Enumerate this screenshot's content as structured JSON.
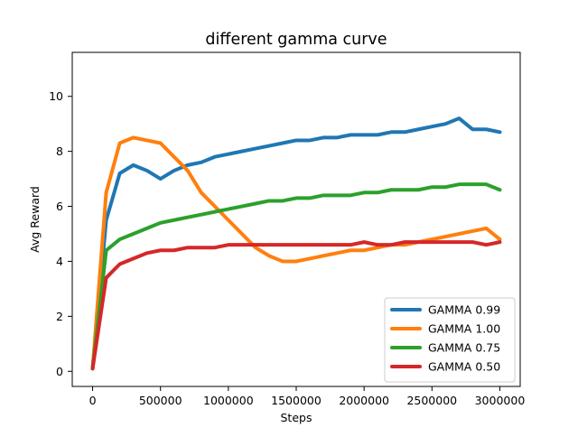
{
  "chart_data": {
    "type": "line",
    "title": "different gamma curve",
    "xlabel": "Steps",
    "ylabel": "Avg Reward",
    "xlim": [
      -150000,
      3150000
    ],
    "ylim": [
      -0.55,
      11.6
    ],
    "xticks": [
      0,
      500000,
      1000000,
      1500000,
      2000000,
      2500000,
      3000000
    ],
    "xtick_labels": [
      "0",
      "500000",
      "1000000",
      "1500000",
      "2000000",
      "2500000",
      "3000000"
    ],
    "yticks": [
      0,
      2,
      4,
      6,
      8,
      10
    ],
    "ytick_labels": [
      "0",
      "2",
      "4",
      "6",
      "8",
      "10"
    ],
    "grid": false,
    "legend_position": "lower-right",
    "series": [
      {
        "name": "GAMMA 0.99",
        "color": "#1f77b4",
        "x": [
          0,
          100000,
          200000,
          300000,
          400000,
          500000,
          600000,
          700000,
          800000,
          900000,
          1000000,
          1100000,
          1200000,
          1300000,
          1400000,
          1500000,
          1600000,
          1700000,
          1800000,
          1900000,
          2000000,
          2100000,
          2200000,
          2300000,
          2400000,
          2500000,
          2600000,
          2700000,
          2800000,
          2900000,
          3000000
        ],
        "y": [
          0.1,
          5.5,
          7.2,
          7.5,
          7.3,
          7.0,
          7.3,
          7.5,
          7.6,
          7.8,
          7.9,
          8.0,
          8.1,
          8.2,
          8.3,
          8.4,
          8.4,
          8.5,
          8.5,
          8.6,
          8.6,
          8.6,
          8.7,
          8.7,
          8.8,
          8.9,
          9.0,
          9.2,
          8.8,
          8.8,
          8.7
        ]
      },
      {
        "name": "GAMMA 1.00",
        "color": "#ff7f0e",
        "x": [
          0,
          100000,
          200000,
          300000,
          400000,
          500000,
          600000,
          700000,
          800000,
          900000,
          1000000,
          1100000,
          1200000,
          1300000,
          1400000,
          1500000,
          1600000,
          1700000,
          1800000,
          1900000,
          2000000,
          2100000,
          2200000,
          2300000,
          2400000,
          2500000,
          2600000,
          2700000,
          2800000,
          2900000,
          3000000
        ],
        "y": [
          0.1,
          6.5,
          8.3,
          8.5,
          8.4,
          8.3,
          7.8,
          7.3,
          6.5,
          6.0,
          5.5,
          5.0,
          4.5,
          4.2,
          4.0,
          4.0,
          4.1,
          4.2,
          4.3,
          4.4,
          4.4,
          4.5,
          4.6,
          4.6,
          4.7,
          4.8,
          4.9,
          5.0,
          5.1,
          5.2,
          4.8
        ]
      },
      {
        "name": "GAMMA 0.75",
        "color": "#2ca02c",
        "x": [
          0,
          100000,
          200000,
          300000,
          400000,
          500000,
          600000,
          700000,
          800000,
          900000,
          1000000,
          1100000,
          1200000,
          1300000,
          1400000,
          1500000,
          1600000,
          1700000,
          1800000,
          1900000,
          2000000,
          2100000,
          2200000,
          2300000,
          2400000,
          2500000,
          2600000,
          2700000,
          2800000,
          2900000,
          3000000
        ],
        "y": [
          0.1,
          4.4,
          4.8,
          5.0,
          5.2,
          5.4,
          5.5,
          5.6,
          5.7,
          5.8,
          5.9,
          6.0,
          6.1,
          6.2,
          6.2,
          6.3,
          6.3,
          6.4,
          6.4,
          6.4,
          6.5,
          6.5,
          6.6,
          6.6,
          6.6,
          6.7,
          6.7,
          6.8,
          6.8,
          6.8,
          6.6
        ]
      },
      {
        "name": "GAMMA 0.50",
        "color": "#d62728",
        "x": [
          0,
          100000,
          200000,
          300000,
          400000,
          500000,
          600000,
          700000,
          800000,
          900000,
          1000000,
          1100000,
          1200000,
          1300000,
          1400000,
          1500000,
          1600000,
          1700000,
          1800000,
          1900000,
          2000000,
          2100000,
          2200000,
          2300000,
          2400000,
          2500000,
          2600000,
          2700000,
          2800000,
          2900000,
          3000000
        ],
        "y": [
          0.1,
          3.4,
          3.9,
          4.1,
          4.3,
          4.4,
          4.4,
          4.5,
          4.5,
          4.5,
          4.6,
          4.6,
          4.6,
          4.6,
          4.6,
          4.6,
          4.6,
          4.6,
          4.6,
          4.6,
          4.7,
          4.6,
          4.6,
          4.7,
          4.7,
          4.7,
          4.7,
          4.7,
          4.7,
          4.6,
          4.7
        ]
      }
    ]
  }
}
